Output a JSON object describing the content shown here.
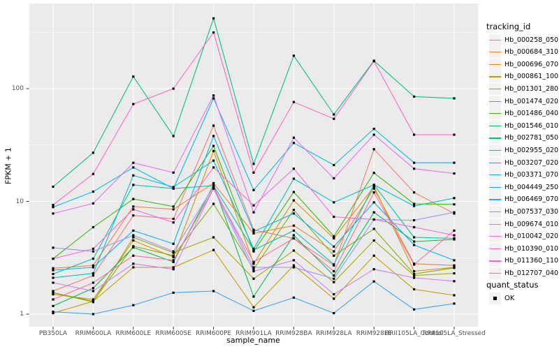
{
  "figure": {
    "background": "#ffffff"
  },
  "panel": {
    "background": "#ebebeb",
    "grid_color": "#ffffff",
    "tick_color": "#333333",
    "tick_label_color": "#4d4d4d"
  },
  "x_axis": {
    "title": "sample_name"
  },
  "y_axis": {
    "title": "FPKM + 1",
    "tick_labels": [
      "1",
      "10",
      "100"
    ]
  },
  "legend": {
    "tracking_title": "tracking_id",
    "quant_title": "quant_status",
    "quant_items": [
      {
        "label": "OK",
        "marker": "black-square"
      }
    ]
  },
  "chart_data": {
    "type": "line",
    "log_y": true,
    "title": "",
    "xlabel": "sample_name",
    "ylabel": "FPKM + 1",
    "y_ticks": [
      1,
      10,
      100
    ],
    "y_minor_ticks": [
      3.162,
      31.62,
      316.2
    ],
    "ylim": [
      0.77,
      550
    ],
    "grid": true,
    "legend_position": "right",
    "marker": "black-square",
    "marker_color": "#000000",
    "categories": [
      "PB350LA",
      "RRIM600LA",
      "RRIM600LE",
      "RRIM600SE",
      "RRIM600PE",
      "RRIM901LA",
      "RRIM928BA",
      "RRIM928LA",
      "RRIM928LE",
      "RRII105LA_Control",
      "RRII105LA_Stressed"
    ],
    "series": [
      {
        "name": "Hb_000258_050",
        "color": "#F8766D",
        "values": [
          1.6,
          2.2,
          7.5,
          7.0,
          47,
          5.6,
          4.7,
          2.7,
          29,
          12,
          7.8
        ]
      },
      {
        "name": "Hb_000684_310",
        "color": "#EA8331",
        "values": [
          2.55,
          2.7,
          9.0,
          8.5,
          14.5,
          5.2,
          6.1,
          3.6,
          13,
          2.8,
          2.7
        ]
      },
      {
        "name": "Hb_000696_070",
        "color": "#D89000",
        "values": [
          1.5,
          1.35,
          4.5,
          3.2,
          28,
          2.8,
          10.2,
          4.7,
          13.5,
          2.4,
          2.6
        ]
      },
      {
        "name": "Hb_000861_100",
        "color": "#C09B00",
        "values": [
          1.02,
          1.3,
          2.6,
          2.6,
          3.7,
          1.15,
          2.7,
          1.37,
          3.3,
          1.66,
          1.47
        ]
      },
      {
        "name": "Hb_001301_280",
        "color": "#A3A500",
        "values": [
          1.55,
          1.28,
          4.8,
          3.5,
          4.8,
          2.06,
          3.66,
          1.92,
          4.5,
          2.2,
          2.3
        ]
      },
      {
        "name": "Hb_001474_020",
        "color": "#7CAE00",
        "values": [
          1.55,
          1.3,
          4.0,
          3.3,
          9.5,
          2.5,
          8.4,
          3.3,
          5.7,
          2.27,
          2.57
        ]
      },
      {
        "name": "Hb_001486_040",
        "color": "#39B600",
        "values": [
          3.1,
          5.9,
          10.5,
          9.0,
          31,
          3.6,
          12.1,
          4.9,
          17.9,
          9.5,
          9.4
        ]
      },
      {
        "name": "Hb_001546_010",
        "color": "#00BB4E",
        "values": [
          1.18,
          1.7,
          3.9,
          2.9,
          14,
          1.43,
          5.0,
          2.2,
          8.0,
          4.4,
          4.6
        ]
      },
      {
        "name": "Hb_002781_050",
        "color": "#00BF7D",
        "values": [
          13.5,
          27,
          128,
          38,
          420,
          21.5,
          196,
          59,
          177,
          85,
          82
        ]
      },
      {
        "name": "Hb_002955_020",
        "color": "#00C1A3",
        "values": [
          2.27,
          3.1,
          14,
          13,
          13.8,
          3.7,
          5.5,
          2.76,
          14,
          4.8,
          4.7
        ]
      },
      {
        "name": "Hb_003207_020",
        "color": "#00BFC4",
        "values": [
          2.1,
          2.3,
          17,
          13.4,
          23,
          3.8,
          15.9,
          9.8,
          14,
          9.1,
          10.7
        ]
      },
      {
        "name": "Hb_003371_070",
        "color": "#00BAE0",
        "values": [
          8.9,
          12.2,
          20,
          13,
          82,
          12.6,
          33,
          21,
          44,
          22,
          22
        ]
      },
      {
        "name": "Hb_004449_250",
        "color": "#00B0F6",
        "values": [
          2.45,
          2.6,
          5.5,
          4.2,
          38,
          5.4,
          7.8,
          3.97,
          9.8,
          4.1,
          3.0
        ]
      },
      {
        "name": "Hb_006469_070",
        "color": "#35A2FF",
        "values": [
          1.05,
          1.0,
          1.2,
          1.55,
          1.6,
          1.07,
          1.4,
          1.02,
          1.95,
          1.1,
          1.24
        ]
      },
      {
        "name": "Hb_007537_030",
        "color": "#9590FF",
        "values": [
          3.88,
          3.6,
          5.0,
          3.6,
          13.5,
          2.6,
          2.6,
          2.06,
          6.9,
          6.8,
          8.0
        ]
      },
      {
        "name": "Hb_009674_010",
        "color": "#C77CFF",
        "values": [
          1.9,
          1.6,
          2.8,
          2.5,
          13,
          2.4,
          3.0,
          1.5,
          2.5,
          2.1,
          1.96
        ]
      },
      {
        "name": "Hb_010042_020",
        "color": "#E76BF3",
        "values": [
          7.8,
          9.6,
          22,
          18,
          87,
          8.0,
          36.7,
          16,
          39,
          19.5,
          17.7
        ]
      },
      {
        "name": "Hb_010390_010",
        "color": "#FA62DB",
        "values": [
          3.1,
          3.8,
          8.5,
          6.5,
          20,
          9.2,
          19.5,
          7.3,
          6.9,
          5.9,
          5.0
        ]
      },
      {
        "name": "Hb_011360_110",
        "color": "#FF62BC",
        "values": [
          9.3,
          17.5,
          73,
          100,
          315,
          18,
          76,
          54,
          175,
          39,
          39
        ]
      },
      {
        "name": "Hb_012707_040",
        "color": "#FF6A98",
        "values": [
          1.35,
          1.9,
          3.3,
          3.0,
          13,
          2.9,
          4.7,
          2.4,
          12,
          2.75,
          5.5
        ]
      }
    ]
  }
}
